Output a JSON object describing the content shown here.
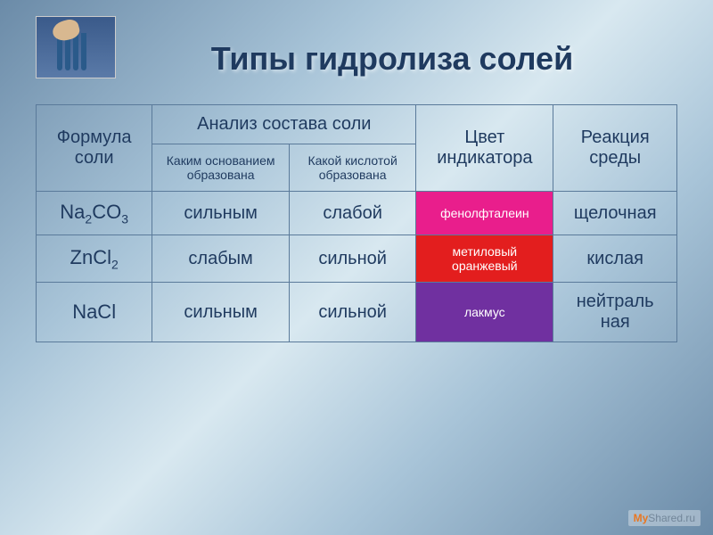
{
  "title": "Типы гидролиза солей",
  "colors": {
    "title_color": "#1f3a5f",
    "border_color": "#5a7a9a",
    "pink": "#e91e8c",
    "red": "#e31e1e",
    "purple": "#7030a0",
    "text_white": "#ffffff"
  },
  "typography": {
    "title_fontsize": 36,
    "header_fontsize": 20,
    "subheader_fontsize": 14,
    "body_fontsize": 20,
    "indicator_fontsize": 14
  },
  "table": {
    "headers": {
      "col1": "Формула соли",
      "col2": "Анализ состава соли",
      "col2a": "Каким основанием образована",
      "col2b": "Какой кислотой образована",
      "col3": "Цвет индикатора",
      "col4": "Реакция среды"
    },
    "rows": [
      {
        "formula_html": "Na<sub>2</sub>CO<sub>3</sub>",
        "base": "сильным",
        "acid": "слабой",
        "indicator": "фенолфталеин",
        "indicator_bg": "pink-bg",
        "medium": "щелочная"
      },
      {
        "formula_html": "ZnCl<sub>2</sub>",
        "base": "слабым",
        "acid": "сильной",
        "indicator": "метиловый оранжевый",
        "indicator_bg": "red-bg",
        "medium": "кислая"
      },
      {
        "formula_html": "NaCl",
        "base": "сильным",
        "acid": "сильной",
        "indicator": "лакмус",
        "indicator_bg": "purple-bg",
        "medium": "нейтраль\nная"
      }
    ]
  },
  "watermark": {
    "prefix": "My",
    "suffix": "Shared.ru"
  }
}
